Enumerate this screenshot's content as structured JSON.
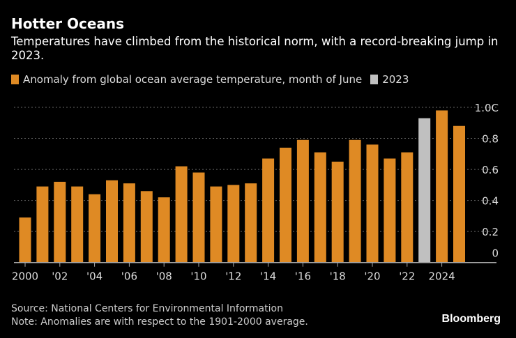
{
  "title": "Hotter Oceans",
  "subtitle": "Temperatures have climbed from the historical norm, with a record-breaking jump in 2023.",
  "source": "Source: National Centers for Environmental Information",
  "note": "Note: Anomalies are with respect to the 1901-2000 average.",
  "logo": "Bloomberg",
  "colors": {
    "series": "#df8a24",
    "highlight": "#c0c0c0",
    "grid": "#666666"
  },
  "chart_data": {
    "type": "bar",
    "legend": [
      {
        "name": "Anomaly from global ocean average temperature, month of June",
        "color": "#df8a24"
      },
      {
        "name": "2023",
        "color": "#c0c0c0"
      }
    ],
    "legend_position": "top-left",
    "categories": [
      2000,
      2001,
      2002,
      2003,
      2004,
      2005,
      2006,
      2007,
      2008,
      2009,
      2010,
      2011,
      2012,
      2013,
      2014,
      2015,
      2016,
      2017,
      2018,
      2019,
      2020,
      2021,
      2022,
      2023,
      2024,
      2025
    ],
    "values": [
      0.29,
      0.49,
      0.52,
      0.49,
      0.44,
      0.53,
      0.51,
      0.46,
      0.42,
      0.62,
      0.58,
      0.49,
      0.5,
      0.51,
      0.67,
      0.74,
      0.79,
      0.71,
      0.65,
      0.79,
      0.76,
      0.67,
      0.71,
      0.93,
      0.98,
      0.88
    ],
    "highlight": [
      2023
    ],
    "x_tick_labels": [
      {
        "year": 2000,
        "label": "2000"
      },
      {
        "year": 2002,
        "label": "'02"
      },
      {
        "year": 2004,
        "label": "'04"
      },
      {
        "year": 2006,
        "label": "'06"
      },
      {
        "year": 2008,
        "label": "'08"
      },
      {
        "year": 2010,
        "label": "'10"
      },
      {
        "year": 2012,
        "label": "'12"
      },
      {
        "year": 2014,
        "label": "'14"
      },
      {
        "year": 2016,
        "label": "'16"
      },
      {
        "year": 2018,
        "label": "'18"
      },
      {
        "year": 2020,
        "label": "'20"
      },
      {
        "year": 2022,
        "label": "'22"
      },
      {
        "year": 2024,
        "label": "2024"
      }
    ],
    "y_ticks": [
      {
        "value": 0,
        "label": "0"
      },
      {
        "value": 0.2,
        "label": "0.2"
      },
      {
        "value": 0.4,
        "label": "0.4"
      },
      {
        "value": 0.6,
        "label": "0.6"
      },
      {
        "value": 0.8,
        "label": "0.8"
      },
      {
        "value": 1.0,
        "label": "1.0C"
      }
    ],
    "ylim": [
      0,
      1.0
    ],
    "grid": true,
    "y_axis_side": "right"
  }
}
